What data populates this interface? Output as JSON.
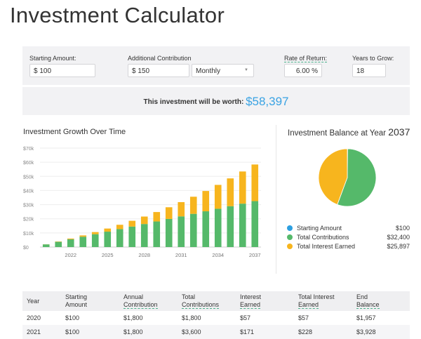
{
  "page_title": "Investment Calculator",
  "inputs": {
    "starting_amount": {
      "label": "Starting Amount:",
      "value": "$ 100"
    },
    "additional_contribution": {
      "label": "Additional Contribution",
      "value": "$ 150",
      "frequency": "Monthly"
    },
    "rate_of_return": {
      "label": "Rate of Return:",
      "value": "6.00 %"
    },
    "years_to_grow": {
      "label": "Years to Grow:",
      "value": "18"
    }
  },
  "result": {
    "label": "This investment will be worth:",
    "value": "$58,397"
  },
  "colors": {
    "starting": "#2d9fe0",
    "contributions": "#55b96a",
    "interest": "#f7b51e",
    "accent": "#3aa3e3"
  },
  "chart_data": [
    {
      "type": "bar",
      "stacked": true,
      "title": "Investment Growth Over Time",
      "categories": [
        "2020",
        "2021",
        "2022",
        "2023",
        "2024",
        "2025",
        "2026",
        "2027",
        "2028",
        "2029",
        "2030",
        "2031",
        "2032",
        "2033",
        "2034",
        "2035",
        "2036",
        "2037"
      ],
      "x_tick_labels": [
        "2022",
        "2025",
        "2028",
        "2031",
        "2034",
        "2037"
      ],
      "y_tick_labels": [
        "$0",
        "$10k",
        "$20k",
        "$30k",
        "$40k",
        "$50k",
        "$60k",
        "$70k"
      ],
      "ylim": [
        0,
        70000
      ],
      "grid": true,
      "series": [
        {
          "key": "contributions",
          "values": [
            1900,
            3700,
            5500,
            7300,
            9100,
            10900,
            12700,
            14500,
            16300,
            18100,
            19900,
            21700,
            23500,
            25300,
            27100,
            28900,
            30700,
            32500
          ]
        },
        {
          "key": "interest",
          "values": [
            57,
            228,
            520,
            940,
            1500,
            2200,
            3060,
            4080,
            5280,
            6670,
            8260,
            10070,
            12100,
            14360,
            16880,
            19670,
            22760,
            25897
          ]
        }
      ]
    },
    {
      "type": "pie",
      "title_prefix": "Investment Balance at Year",
      "title_year": "2037",
      "legend_placement": "bottom",
      "slices": [
        {
          "name": "Starting Amount",
          "value": 100,
          "label": "$100",
          "color": "#2d9fe0"
        },
        {
          "name": "Total Contributions",
          "value": 32400,
          "label": "$32,400",
          "color": "#55b96a"
        },
        {
          "name": "Total Interest Earned",
          "value": 25897,
          "label": "$25,897",
          "color": "#f7b51e"
        }
      ]
    }
  ],
  "table": {
    "headers": [
      [
        "Year",
        ""
      ],
      [
        "Starting",
        "Amount"
      ],
      [
        "Annual",
        "Contribution"
      ],
      [
        "Total",
        "Contributions"
      ],
      [
        "Interest",
        "Earned"
      ],
      [
        "Total Interest",
        "Earned"
      ],
      [
        "End",
        "Balance"
      ]
    ],
    "rows": [
      [
        "2020",
        "$100",
        "$1,800",
        "$1,800",
        "$57",
        "$57",
        "$1,957"
      ],
      [
        "2021",
        "$100",
        "$1,800",
        "$3,600",
        "$171",
        "$228",
        "$3,928"
      ]
    ]
  }
}
